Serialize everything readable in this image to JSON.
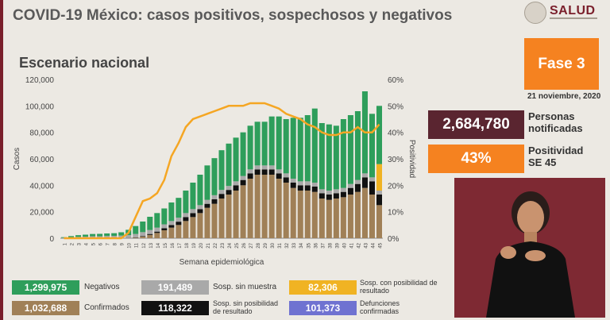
{
  "header": {
    "title": "COVID-19 México: casos positivos, sospechosos y negativos",
    "subtitle": "Escenario nacional",
    "logo_text": "SALUD"
  },
  "panel": {
    "phase": "Fase 3",
    "date": "21 noviembre, 2020",
    "kpi_notified_value": "2,684,780",
    "kpi_notified_label_1": "Personas",
    "kpi_notified_label_2": "notificadas",
    "kpi_positivity_value": "43%",
    "kpi_positivity_label_1": "Positividad",
    "kpi_positivity_label_2": "SE 45"
  },
  "legend": {
    "items": [
      {
        "value": "1,299,975",
        "label": "Negativos",
        "color": "#2e9e5b"
      },
      {
        "value": "191,489",
        "label": "Sosp. sin muestra",
        "color": "#a9a9a9"
      },
      {
        "value": "82,306",
        "label": "Sosp. con posibilidad de resultado",
        "color": "#f0b323"
      },
      {
        "value": "1,032,688",
        "label": "Confirmados",
        "color": "#a08057"
      },
      {
        "value": "118,322",
        "label": "Sosp. sin posibilidad de resultado",
        "color": "#111111"
      },
      {
        "value": "101,373",
        "label": "Defunciones confirmadas",
        "color": "#6f72d1"
      }
    ]
  },
  "chart_data": {
    "type": "bar",
    "stacked": true,
    "xlabel": "Semana epidemiológica",
    "ylabel": "Casos",
    "y2label": "Positividad",
    "ylim": [
      0,
      120000
    ],
    "y2lim": [
      0,
      60
    ],
    "yticks": [
      "0",
      "20,000",
      "40,000",
      "60,000",
      "80,000",
      "100,000",
      "120,000"
    ],
    "y2ticks": [
      "0%",
      "10%",
      "20%",
      "30%",
      "40%",
      "50%",
      "60%"
    ],
    "categories": [
      "1",
      "2",
      "3",
      "4",
      "5",
      "6",
      "7",
      "8",
      "9",
      "10",
      "11",
      "12",
      "13",
      "14",
      "15",
      "16",
      "17",
      "18",
      "19",
      "20",
      "21",
      "22",
      "23",
      "24",
      "25",
      "26",
      "27",
      "28",
      "29",
      "30",
      "31",
      "32",
      "33",
      "34",
      "35",
      "36",
      "37",
      "38",
      "39",
      "40",
      "41",
      "42",
      "43",
      "44",
      "45"
    ],
    "series": [
      {
        "name": "Confirmados",
        "color": "#a08057",
        "values": [
          0,
          0,
          0,
          0,
          0,
          0,
          0,
          0,
          0,
          100,
          400,
          1200,
          2500,
          4000,
          6000,
          8000,
          10000,
          13000,
          16000,
          19000,
          23000,
          26000,
          30000,
          33000,
          36000,
          40000,
          45000,
          48000,
          48000,
          48000,
          45000,
          42000,
          38000,
          36000,
          36000,
          35000,
          30000,
          29000,
          30000,
          31000,
          33000,
          35000,
          38000,
          33000,
          25000
        ]
      },
      {
        "name": "Sosp. sin posibilidad de resultado",
        "color": "#111111",
        "values": [
          0,
          0,
          0,
          0,
          0,
          0,
          0,
          0,
          0,
          50,
          200,
          400,
          700,
          1000,
          1500,
          2000,
          2500,
          3000,
          3000,
          3000,
          3000,
          3500,
          3500,
          3500,
          4000,
          4000,
          4000,
          4000,
          4000,
          4000,
          4000,
          4000,
          4000,
          4000,
          4000,
          4000,
          4000,
          4000,
          4000,
          4000,
          5000,
          6000,
          8000,
          10000,
          8000
        ]
      },
      {
        "name": "Sosp. sin muestra",
        "color": "#a9a9a9",
        "values": [
          300,
          600,
          1000,
          1200,
          1500,
          1500,
          1700,
          1800,
          2000,
          2200,
          2600,
          3000,
          3000,
          3000,
          3000,
          3000,
          3000,
          3000,
          3000,
          3000,
          3000,
          3000,
          3000,
          3000,
          3000,
          3000,
          3000,
          3000,
          3000,
          3000,
          3000,
          3000,
          3000,
          3000,
          3000,
          3000,
          3000,
          3000,
          3000,
          3000,
          3000,
          3000,
          3000,
          3000,
          3000
        ]
      },
      {
        "name": "Sosp. con posibilidad de resultado",
        "color": "#f0b323",
        "values": [
          0,
          0,
          0,
          0,
          0,
          0,
          0,
          0,
          0,
          0,
          0,
          0,
          0,
          0,
          0,
          0,
          0,
          0,
          0,
          0,
          0,
          0,
          0,
          0,
          0,
          0,
          0,
          0,
          0,
          0,
          0,
          0,
          0,
          0,
          0,
          0,
          0,
          0,
          0,
          0,
          0,
          0,
          0,
          0,
          20000
        ]
      },
      {
        "name": "Negativos",
        "color": "#2e9e5b",
        "values": [
          500,
          1000,
          1300,
          1500,
          1700,
          1800,
          1900,
          2000,
          2500,
          4000,
          6000,
          8000,
          10000,
          11000,
          12000,
          14000,
          15000,
          17000,
          20000,
          23000,
          26000,
          28000,
          30000,
          32000,
          33000,
          33000,
          33000,
          33000,
          33000,
          37000,
          40000,
          41000,
          46000,
          48000,
          50000,
          56000,
          50000,
          50000,
          48000,
          52000,
          52000,
          52000,
          62000,
          48000,
          44000
        ]
      },
      {
        "name": "Positividad",
        "type": "line",
        "axis": "y2",
        "color": "#f5a623",
        "values": [
          0,
          0,
          0,
          0,
          0,
          0,
          0,
          0,
          0,
          2,
          8,
          14,
          15,
          17,
          22,
          31,
          36,
          42,
          45,
          46,
          47,
          48,
          49,
          50,
          50,
          50,
          51,
          51,
          51,
          50,
          49,
          47,
          46,
          45,
          43,
          42,
          40,
          39,
          39,
          40,
          40,
          42,
          40,
          40,
          43
        ]
      }
    ]
  }
}
